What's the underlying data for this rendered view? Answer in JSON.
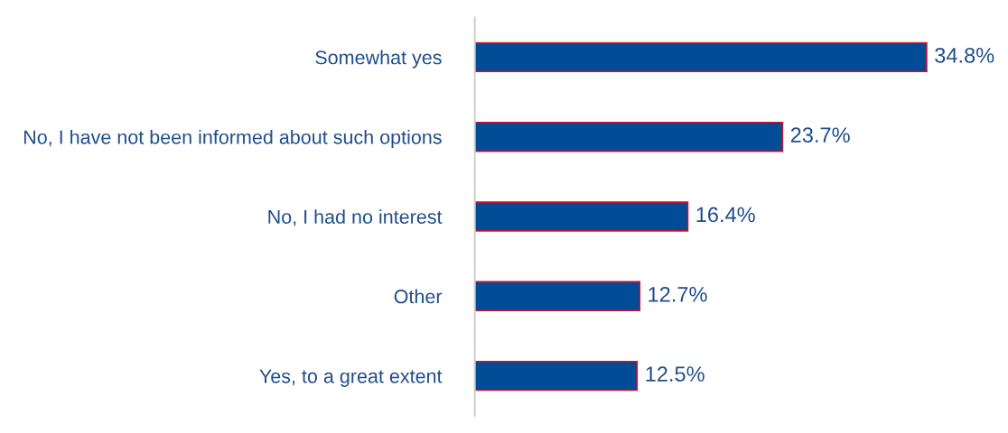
{
  "chart_data": {
    "type": "bar",
    "orientation": "horizontal",
    "categories": [
      "Somewhat yes",
      "No, I have not been informed about such options",
      "No, I had no interest",
      "Other",
      "Yes, to a great extent"
    ],
    "values": [
      34.8,
      23.7,
      16.4,
      12.7,
      12.5
    ],
    "value_labels": [
      "34.8%",
      "23.7%",
      "16.4%",
      "12.7%",
      "12.5%"
    ],
    "color": "#004c97",
    "grid": false,
    "legend": false
  }
}
